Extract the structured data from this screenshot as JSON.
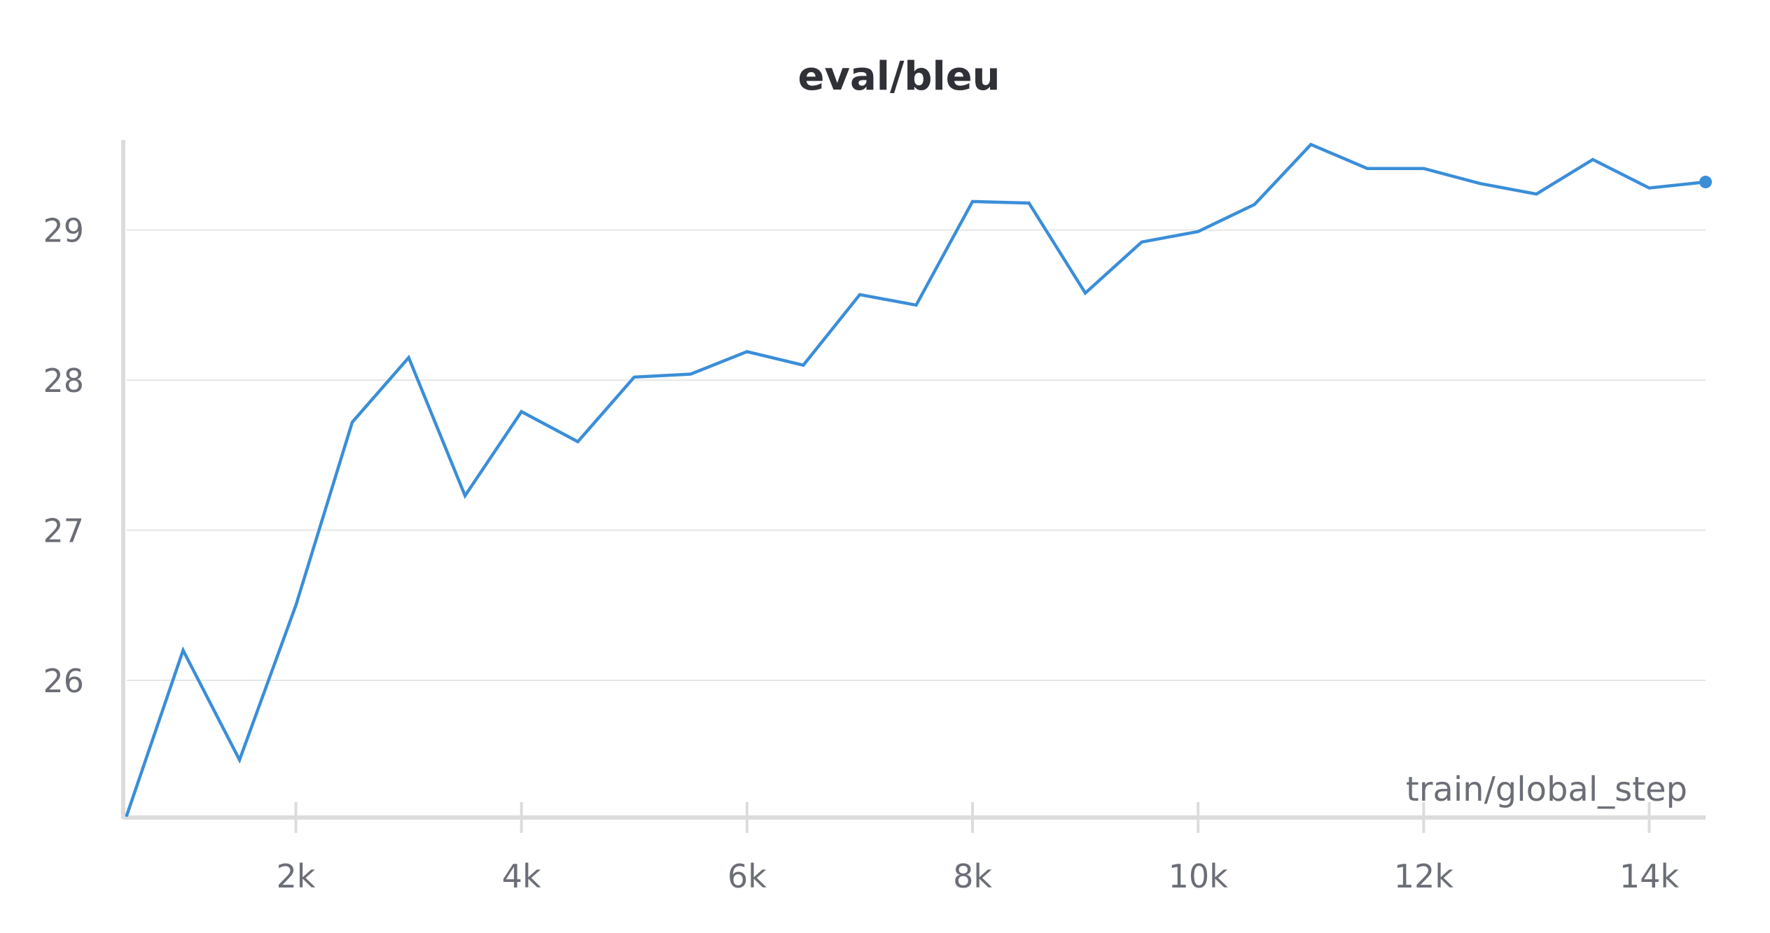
{
  "chart_data": {
    "type": "line",
    "title": "eval/bleu",
    "xlabel": "train/global_step",
    "ylabel": "",
    "xlim": [
      500,
      14500
    ],
    "ylim": [
      25.1,
      29.6
    ],
    "x_ticks": [
      2000,
      4000,
      6000,
      8000,
      10000,
      12000,
      14000
    ],
    "x_tick_labels": [
      "2k",
      "4k",
      "6k",
      "8k",
      "10k",
      "12k",
      "14k"
    ],
    "y_ticks": [
      26,
      27,
      28,
      29
    ],
    "y_tick_labels": [
      "26",
      "27",
      "28",
      "29"
    ],
    "grid": true,
    "legend": "none",
    "series": [
      {
        "color": "#3b8ed8",
        "x": [
          500,
          1000,
          1500,
          2000,
          2500,
          3000,
          3500,
          4000,
          4500,
          5000,
          5500,
          6000,
          6500,
          7000,
          7500,
          8000,
          8500,
          9000,
          9500,
          10000,
          10500,
          11000,
          11500,
          12000,
          12500,
          13000,
          13500,
          14000,
          14500
        ],
        "y": [
          25.1,
          26.2,
          25.47,
          26.5,
          27.72,
          28.15,
          27.23,
          27.79,
          27.59,
          28.02,
          28.04,
          28.19,
          28.1,
          28.57,
          28.5,
          29.19,
          29.18,
          28.58,
          28.92,
          28.99,
          29.17,
          29.57,
          29.41,
          29.41,
          29.31,
          29.24,
          29.47,
          29.28,
          29.32
        ]
      }
    ]
  },
  "colors": {
    "line": "#3b8ed8",
    "grid": "#e6e6e6",
    "axis": "#dcdcdc",
    "text": "#6b6e76",
    "title": "#2f3136"
  }
}
